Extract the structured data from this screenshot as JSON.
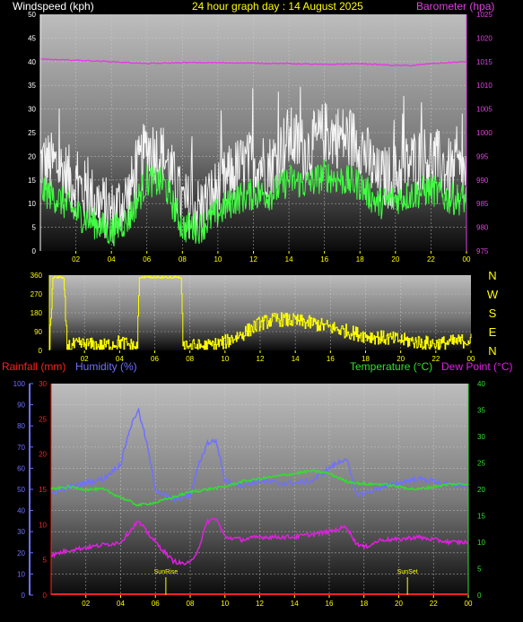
{
  "header": {
    "windspeed_label": "Windspeed (kph)",
    "title": "24 hour graph day : 14 August 2025",
    "barometer_label": "Barometer (hpa)"
  },
  "wind_panel": {
    "headings": [
      "N",
      "W",
      "S",
      "E",
      "N"
    ]
  },
  "labels_row": {
    "rainfall": "Rainfall (mm)",
    "humidity": "Humidity (%)",
    "temperature": "Temperature (°C)",
    "dewpoint": "Dew Point (°C)"
  },
  "markers": {
    "sunrise": "SunRise",
    "sunset": "SunSet"
  },
  "colors": {
    "windspeed_label": "#ffffff",
    "title": "#ffff00",
    "barometer": "#e040e0",
    "gust": "#ffffff",
    "average_wind": "#40ff40",
    "direction": "#ffff00",
    "rainfall": "#ff2020",
    "humidity": "#7070ff",
    "temperature": "#30e030",
    "dewpoint": "#e020e0"
  },
  "chart_data": [
    {
      "type": "line",
      "x_ticks": [
        "02",
        "04",
        "06",
        "08",
        "10",
        "12",
        "14",
        "16",
        "18",
        "20",
        "22",
        "00"
      ],
      "y_left_ticks": [
        0,
        5,
        10,
        15,
        20,
        25,
        30,
        35,
        40,
        45,
        50
      ],
      "y_left_range": [
        0,
        50
      ],
      "y_right_ticks": [
        975,
        980,
        985,
        990,
        995,
        1000,
        1005,
        1010,
        1015,
        1020,
        1025
      ],
      "y_right_range": [
        975,
        1025
      ],
      "series": [
        {
          "name": "Windspeed (kph)",
          "kind": "gust",
          "x_hours": [
            0,
            1,
            2,
            3,
            4,
            5,
            6,
            7,
            8,
            9,
            10,
            11,
            12,
            13,
            14,
            15,
            16,
            17,
            18,
            19,
            20,
            21,
            22,
            23,
            24
          ],
          "values": [
            19,
            18,
            14,
            11,
            8,
            12,
            22,
            20,
            10,
            9,
            13,
            17,
            19,
            18,
            24,
            21,
            25,
            24,
            23,
            15,
            16,
            19,
            20,
            17,
            16
          ]
        },
        {
          "name": "Windspeed (kph)",
          "kind": "average",
          "x_hours": [
            0,
            1,
            2,
            3,
            4,
            5,
            6,
            7,
            8,
            9,
            10,
            11,
            12,
            13,
            14,
            15,
            16,
            17,
            18,
            19,
            20,
            21,
            22,
            23,
            24
          ],
          "values": [
            13,
            11,
            8,
            6,
            4,
            7,
            15,
            14,
            5,
            5,
            8,
            11,
            12,
            12,
            15,
            14,
            16,
            15,
            14,
            10,
            11,
            12,
            13,
            11,
            11
          ]
        },
        {
          "name": "Barometer (hpa)",
          "x_hours": [
            0,
            2,
            4,
            6,
            8,
            10,
            12,
            14,
            16,
            18,
            20,
            21,
            22,
            24
          ],
          "values": [
            1015.5,
            1015.3,
            1015,
            1014.6,
            1014.8,
            1014.8,
            1014.7,
            1014.6,
            1014.4,
            1014.6,
            1014.2,
            1014.2,
            1014.6,
            1015
          ]
        }
      ]
    },
    {
      "type": "line",
      "x_ticks": [
        "02",
        "04",
        "06",
        "08",
        "10",
        "12",
        "14",
        "16",
        "18",
        "20",
        "22",
        "00"
      ],
      "y_left_ticks": [
        0,
        90,
        180,
        270,
        360
      ],
      "y_left_range": [
        0,
        360
      ],
      "y_right_ticks": [
        "N",
        "W",
        "S",
        "E",
        "N"
      ],
      "series": [
        {
          "name": "Wind direction",
          "x_hours": [
            0,
            0.2,
            0.5,
            0.8,
            1,
            2,
            3,
            4,
            5,
            5.1,
            6,
            7,
            7.5,
            7.6,
            8,
            9,
            10,
            11,
            12,
            13,
            14,
            15,
            16,
            17,
            18,
            19,
            20,
            21,
            22,
            23,
            24
          ],
          "values": [
            20,
            360,
            360,
            360,
            20,
            30,
            20,
            40,
            15,
            360,
            360,
            360,
            360,
            40,
            20,
            20,
            40,
            80,
            130,
            150,
            140,
            130,
            110,
            90,
            70,
            60,
            50,
            40,
            30,
            40,
            50
          ]
        }
      ]
    },
    {
      "type": "line",
      "x_ticks": [
        "02",
        "04",
        "06",
        "08",
        "10",
        "12",
        "14",
        "16",
        "18",
        "20",
        "22",
        "00"
      ],
      "y_left_ticks": [
        0,
        10,
        20,
        30,
        40,
        50,
        60,
        70,
        80,
        90,
        100
      ],
      "y_left_range": [
        0,
        100
      ],
      "y_rain_ticks": [
        0,
        5,
        10,
        15,
        20,
        25,
        30
      ],
      "y_rain_range": [
        0,
        30
      ],
      "y_right_ticks": [
        0,
        5,
        10,
        15,
        20,
        25,
        30,
        35,
        40
      ],
      "y_right_range": [
        0,
        40
      ],
      "series": [
        {
          "name": "Humidity (%)",
          "x_hours": [
            0,
            1,
            2,
            3,
            4,
            4.5,
            5,
            5.5,
            6,
            7,
            8,
            8.5,
            9,
            9.5,
            10,
            11,
            12,
            13,
            14,
            15,
            16,
            17,
            17.5,
            18,
            19,
            20,
            21,
            22,
            23,
            24
          ],
          "values": [
            48,
            51,
            53,
            55,
            62,
            78,
            88,
            72,
            50,
            45,
            47,
            62,
            72,
            73,
            54,
            52,
            54,
            53,
            53,
            54,
            60,
            65,
            48,
            48,
            51,
            53,
            55,
            54,
            52,
            52
          ]
        },
        {
          "name": "Temperature (°C)",
          "x_hours": [
            0,
            1,
            2,
            3,
            4,
            5,
            6,
            7,
            8,
            9,
            10,
            11,
            12,
            13,
            14,
            15,
            16,
            17,
            18,
            19,
            20,
            21,
            22,
            23,
            24
          ],
          "values": [
            20,
            20.5,
            20,
            20,
            18.5,
            17,
            17.5,
            18.5,
            19.5,
            20,
            20.5,
            21.5,
            22,
            22.5,
            23,
            23.5,
            23,
            21.5,
            21,
            21,
            20.5,
            20,
            20.5,
            21,
            21
          ]
        },
        {
          "name": "Dew Point (°C)",
          "x_hours": [
            0,
            1,
            2,
            3,
            4,
            4.5,
            5,
            5.5,
            6,
            7,
            7.5,
            8,
            8.5,
            9,
            9.5,
            10,
            11,
            12,
            13,
            14,
            15,
            16,
            17,
            17.5,
            18,
            19,
            20,
            21,
            22,
            23,
            24
          ],
          "values": [
            7.5,
            8.5,
            9,
            9.5,
            10,
            12,
            14,
            12,
            10,
            6.5,
            6,
            6,
            9,
            14,
            14.5,
            11,
            10.5,
            11,
            11,
            11,
            11.5,
            12,
            13,
            10,
            9,
            10.5,
            10.5,
            11,
            10.5,
            10,
            10
          ]
        },
        {
          "name": "Rainfall (mm)",
          "x_hours": [
            0,
            24
          ],
          "values": [
            0,
            0
          ]
        }
      ]
    }
  ]
}
